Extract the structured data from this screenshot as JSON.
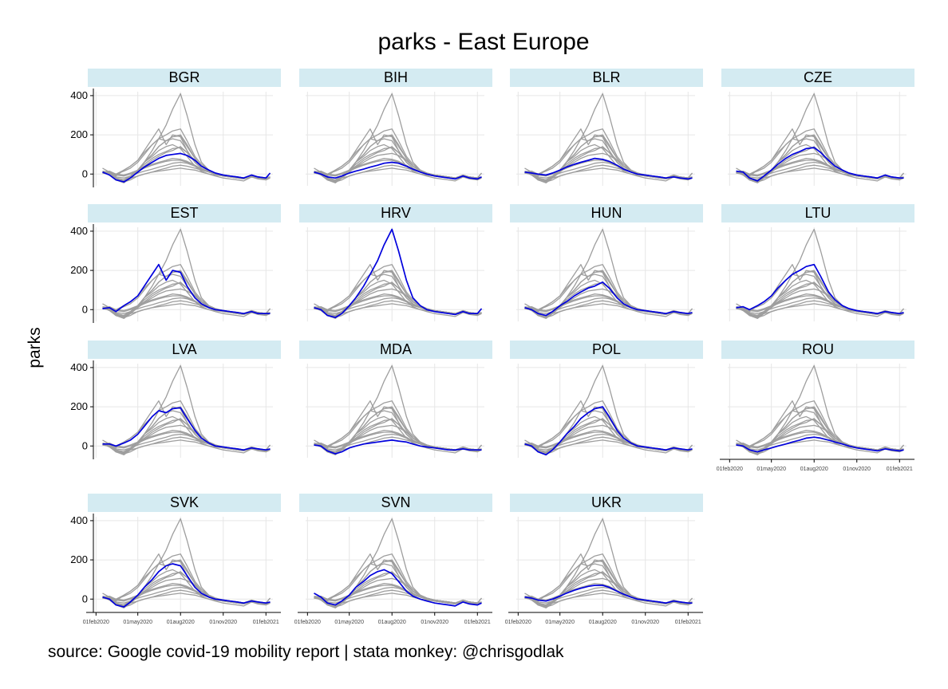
{
  "chart_data": {
    "type": "line",
    "title": "parks - East Europe",
    "ylabel": "parks",
    "source": "source: Google covid-19 mobility report | stata monkey: @chrisgodlak",
    "x_range": [
      "2020-02-15",
      "2021-02-10"
    ],
    "y_range": [
      -60,
      420
    ],
    "y_ticks": [
      0,
      200,
      400
    ],
    "x_ticks": [
      {
        "label": "01feb2020",
        "date": "2020-02-01"
      },
      {
        "label": "01may2020",
        "date": "2020-05-01"
      },
      {
        "label": "01aug2020",
        "date": "2020-08-01"
      },
      {
        "label": "01nov2020",
        "date": "2020-11-01"
      },
      {
        "label": "01feb2021",
        "date": "2021-02-01"
      }
    ],
    "colors": {
      "highlight": "#0000dd",
      "background_series": "#9e9e9e",
      "strip": "#d4ebf2",
      "grid": "#e6e6e6"
    },
    "dates": [
      "2020-02-15",
      "2020-03-01",
      "2020-03-15",
      "2020-04-01",
      "2020-04-15",
      "2020-05-01",
      "2020-05-15",
      "2020-06-01",
      "2020-06-15",
      "2020-07-01",
      "2020-07-15",
      "2020-08-01",
      "2020-08-15",
      "2020-09-01",
      "2020-09-15",
      "2020-10-01",
      "2020-10-15",
      "2020-11-01",
      "2020-11-15",
      "2020-12-01",
      "2020-12-15",
      "2021-01-01",
      "2021-01-15",
      "2021-02-01",
      "2021-02-10"
    ],
    "panels": [
      {
        "name": "BGR",
        "values": [
          10,
          -5,
          -30,
          -40,
          -20,
          10,
          35,
          60,
          80,
          95,
          100,
          105,
          95,
          70,
          40,
          20,
          5,
          -5,
          -10,
          -15,
          -20,
          -5,
          -15,
          -20,
          5
        ]
      },
      {
        "name": "BIH",
        "values": [
          10,
          0,
          -15,
          -20,
          -10,
          5,
          15,
          25,
          35,
          45,
          55,
          60,
          55,
          40,
          25,
          10,
          0,
          -10,
          -15,
          -20,
          -25,
          -10,
          -20,
          -25,
          -15
        ]
      },
      {
        "name": "BLR",
        "values": [
          10,
          5,
          0,
          -5,
          5,
          20,
          35,
          50,
          60,
          70,
          80,
          75,
          65,
          45,
          25,
          10,
          0,
          -5,
          -10,
          -15,
          -20,
          -15,
          -20,
          -25,
          -20
        ]
      },
      {
        "name": "CZE",
        "values": [
          15,
          10,
          -20,
          -35,
          -10,
          20,
          50,
          80,
          100,
          115,
          130,
          135,
          110,
          70,
          40,
          20,
          5,
          -5,
          -10,
          -15,
          -20,
          -5,
          -15,
          -20,
          -20
        ]
      },
      {
        "name": "EST",
        "values": [
          5,
          10,
          -10,
          20,
          40,
          70,
          120,
          180,
          230,
          150,
          200,
          190,
          120,
          60,
          30,
          10,
          0,
          -5,
          -10,
          -15,
          -20,
          -10,
          -20,
          -20,
          -20
        ]
      },
      {
        "name": "HRV",
        "values": [
          10,
          0,
          -30,
          -40,
          -20,
          20,
          60,
          120,
          180,
          250,
          330,
          410,
          300,
          150,
          60,
          20,
          0,
          -10,
          -15,
          -20,
          -25,
          -10,
          -20,
          -20,
          5
        ]
      },
      {
        "name": "HUN",
        "values": [
          10,
          0,
          -20,
          -30,
          -10,
          20,
          40,
          70,
          90,
          110,
          120,
          140,
          110,
          60,
          30,
          10,
          0,
          -5,
          -10,
          -15,
          -20,
          -10,
          -15,
          -20,
          -15
        ]
      },
      {
        "name": "LTU",
        "values": [
          10,
          15,
          0,
          20,
          40,
          70,
          110,
          150,
          180,
          200,
          220,
          230,
          170,
          90,
          50,
          20,
          5,
          -5,
          -10,
          -15,
          -20,
          -10,
          -15,
          -20,
          -15
        ]
      },
      {
        "name": "LVA",
        "values": [
          10,
          10,
          0,
          15,
          30,
          60,
          100,
          150,
          180,
          170,
          190,
          195,
          140,
          80,
          40,
          15,
          0,
          -5,
          -10,
          -15,
          -20,
          -10,
          -15,
          -20,
          -15
        ]
      },
      {
        "name": "MDA",
        "values": [
          5,
          0,
          -25,
          -40,
          -30,
          -10,
          0,
          10,
          15,
          20,
          25,
          30,
          25,
          20,
          10,
          0,
          -5,
          -10,
          -15,
          -20,
          -20,
          -15,
          -20,
          -20,
          -20
        ]
      },
      {
        "name": "POL",
        "values": [
          10,
          0,
          -30,
          -45,
          -20,
          20,
          60,
          100,
          140,
          170,
          190,
          200,
          150,
          80,
          40,
          15,
          0,
          -5,
          -10,
          -15,
          -20,
          -10,
          -15,
          -20,
          -15
        ]
      },
      {
        "name": "ROU",
        "values": [
          5,
          0,
          -20,
          -30,
          -20,
          -10,
          0,
          10,
          20,
          30,
          40,
          45,
          40,
          30,
          20,
          10,
          0,
          -10,
          -15,
          -20,
          -25,
          -15,
          -20,
          -25,
          -20
        ]
      },
      {
        "name": "SVK",
        "values": [
          10,
          0,
          -30,
          -40,
          -15,
          20,
          60,
          100,
          140,
          170,
          180,
          170,
          120,
          60,
          30,
          10,
          0,
          -5,
          -10,
          -15,
          -20,
          -10,
          -15,
          -20,
          -15
        ]
      },
      {
        "name": "SVN",
        "values": [
          30,
          10,
          -20,
          -30,
          -10,
          20,
          60,
          90,
          120,
          140,
          150,
          130,
          90,
          40,
          15,
          0,
          -10,
          -20,
          -25,
          -30,
          -35,
          -15,
          -25,
          -30,
          -20
        ]
      },
      {
        "name": "UKR",
        "values": [
          10,
          5,
          -5,
          -10,
          0,
          15,
          30,
          45,
          55,
          65,
          70,
          70,
          60,
          40,
          25,
          10,
          0,
          -5,
          -10,
          -15,
          -20,
          -10,
          -15,
          -20,
          -20
        ]
      }
    ]
  }
}
